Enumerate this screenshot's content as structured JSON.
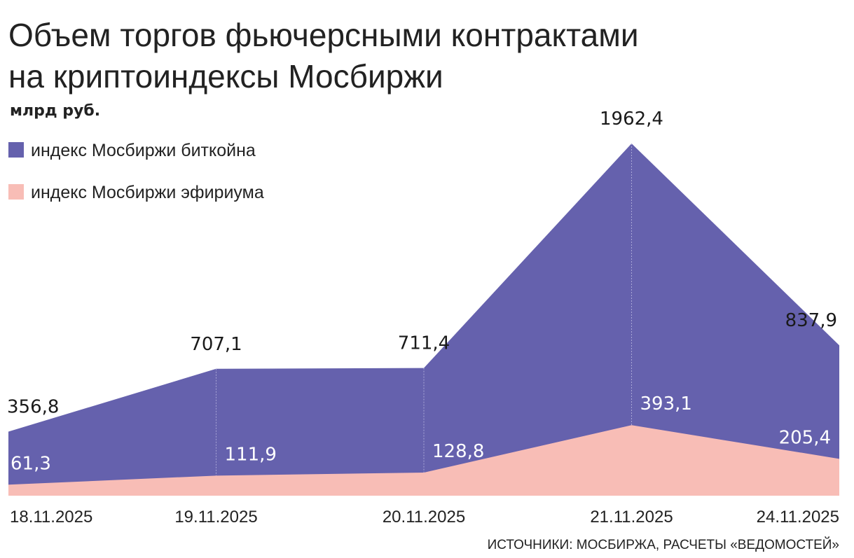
{
  "chart_data": {
    "type": "area",
    "title_lines": [
      "Объем торгов фьючерсными контрактами",
      "на криптоиндексы Мосбиржи"
    ],
    "subtitle": "млрд руб.",
    "categories": [
      "18.11.2025",
      "19.11.2025",
      "20.11.2025",
      "21.11.2025",
      "24.11.2025"
    ],
    "series": [
      {
        "name": "индекс Мосбиржи биткойна",
        "color": "#6561ad",
        "values": [
          356.8,
          707.1,
          711.4,
          1962.4,
          837.9
        ],
        "value_labels": [
          "356,8",
          "707,1",
          "711,4",
          "1962,4",
          "837,9"
        ]
      },
      {
        "name": "индекс Мосбиржи эфириума",
        "color": "#f8bdb6",
        "values": [
          61.3,
          111.9,
          128.8,
          393.1,
          205.4
        ],
        "value_labels": [
          "61,3",
          "111,9",
          "128,8",
          "393,1",
          "205,4"
        ]
      }
    ],
    "source": "ИСТОЧНИКИ: МОСБИРЖА, РАСЧЕТЫ «ВЕДОМОСТЕЙ»"
  }
}
